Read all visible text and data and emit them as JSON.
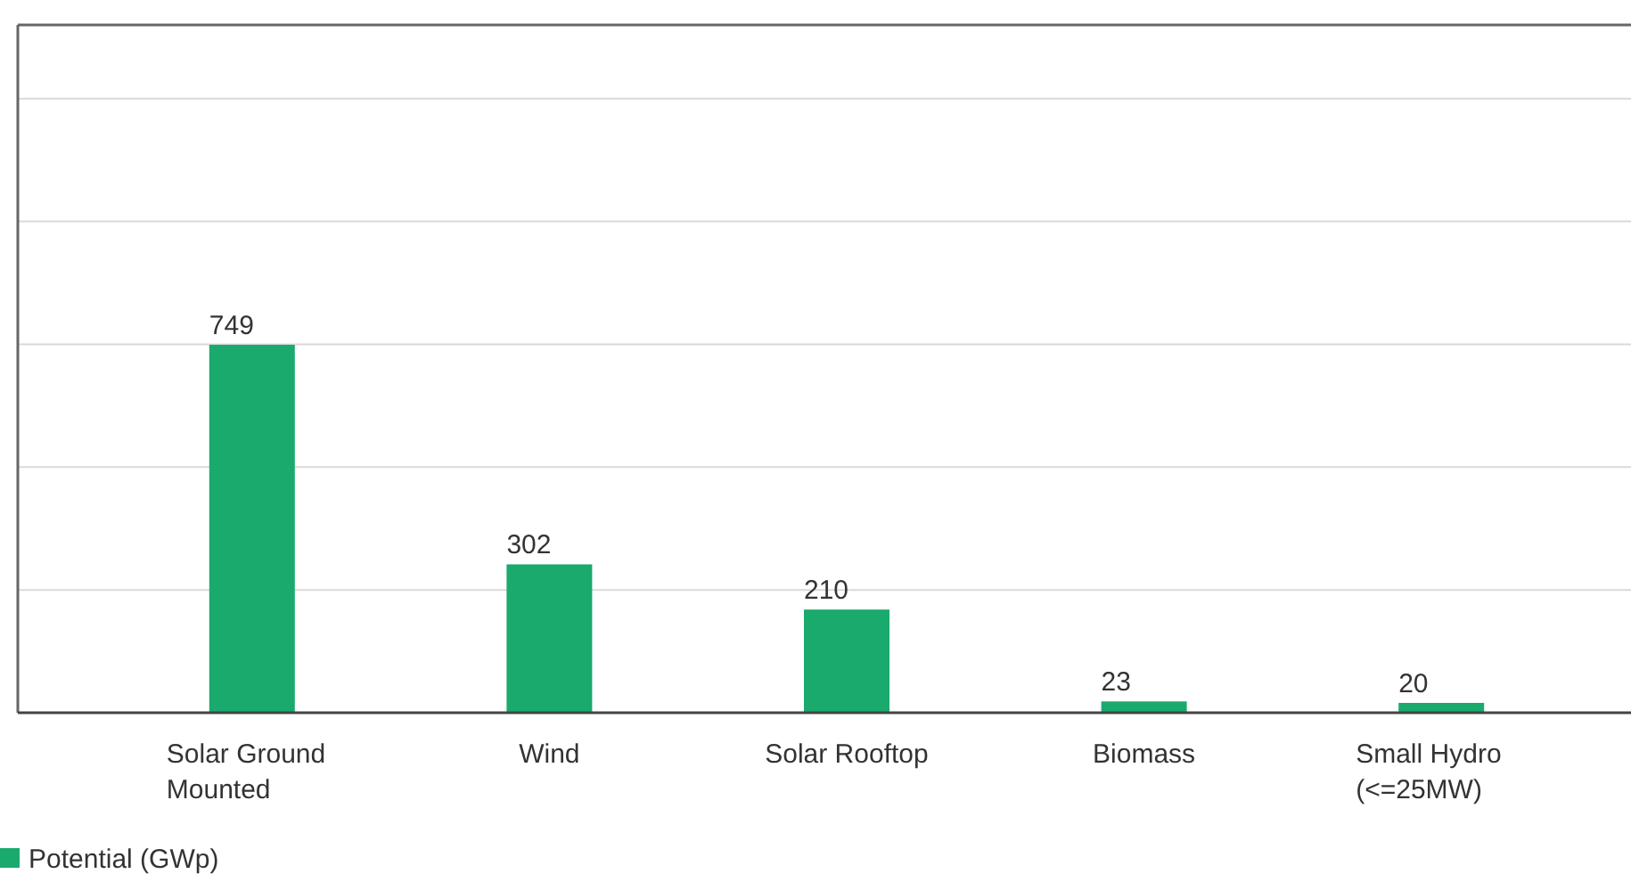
{
  "chart_data": {
    "type": "bar",
    "categories": [
      "Solar Ground Mounted",
      "Wind",
      "Solar Rooftop",
      "Biomass",
      "Small Hydro (<=25MW)"
    ],
    "series": [
      {
        "name": "Potential (GWp)",
        "color": "#1aaa6e",
        "values": [
          749,
          302,
          210,
          23,
          20
        ]
      }
    ],
    "ylim": [
      0,
      1400
    ],
    "yticks": [
      {
        "value": 0,
        "label": null
      },
      {
        "value": 250,
        "label": null
      },
      {
        "value": 500,
        "label": null
      },
      {
        "value": 750,
        "label": null
      },
      {
        "value": 1000,
        "label": null
      },
      {
        "value": 1250,
        "label": null
      }
    ],
    "tick_labels": "x",
    "grid": "y",
    "data_labels": true,
    "legend": "bottom left"
  }
}
